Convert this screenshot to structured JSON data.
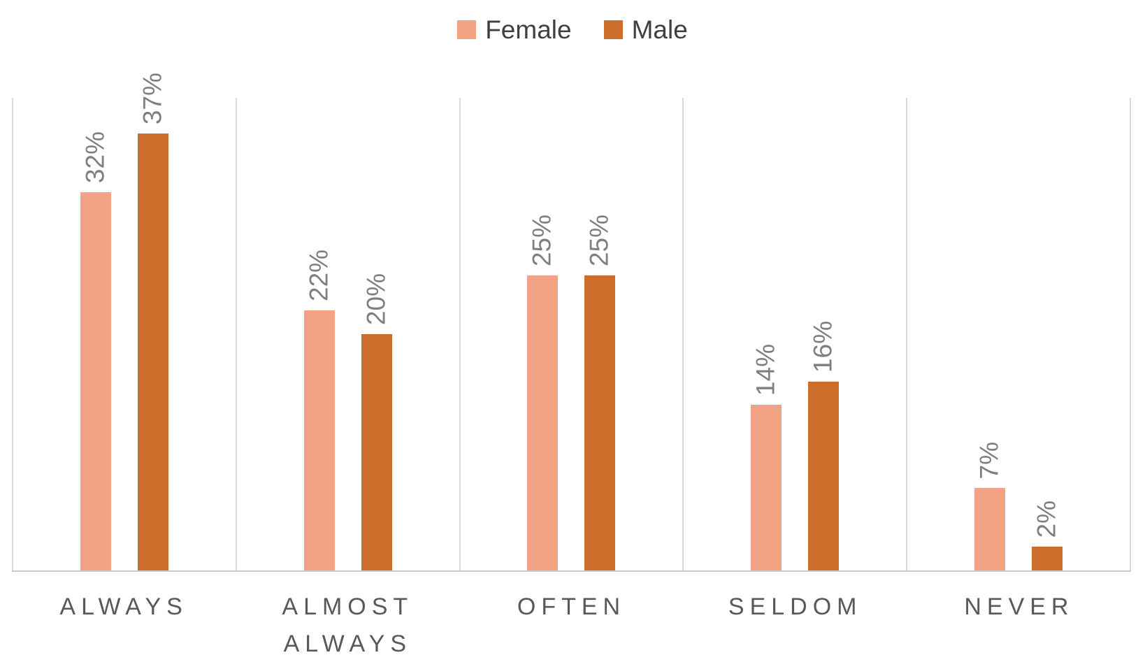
{
  "legend": {
    "items": [
      {
        "label": "Female",
        "color": "#F2A383"
      },
      {
        "label": "Male",
        "color": "#CC6D2B"
      }
    ]
  },
  "chart_data": {
    "type": "bar",
    "title": "",
    "xlabel": "",
    "ylabel": "",
    "categories": [
      "ALWAYS",
      "ALMOST ALWAYS",
      "OFTEN",
      "SELDOM",
      "NEVER"
    ],
    "series": [
      {
        "name": "Female",
        "color": "#F2A383",
        "values": [
          32,
          22,
          25,
          14,
          7
        ]
      },
      {
        "name": "Male",
        "color": "#CC6D2B",
        "values": [
          37,
          20,
          25,
          16,
          2
        ]
      }
    ],
    "data_label_format": "{value}%",
    "data_label_rotation_deg": -90,
    "ylim": [
      0,
      40
    ],
    "y_axis_labels_visible": false,
    "grid": "vertical category-boundary gridlines only",
    "legend_position": "top-center"
  },
  "style": {
    "background": "#FFFFFF",
    "grid_color": "#D9D9D9",
    "axis_line_color": "#C8C8C8",
    "data_label_color": "#7F7F7F",
    "category_label_color": "#595959",
    "legend_text_color": "#404040"
  }
}
